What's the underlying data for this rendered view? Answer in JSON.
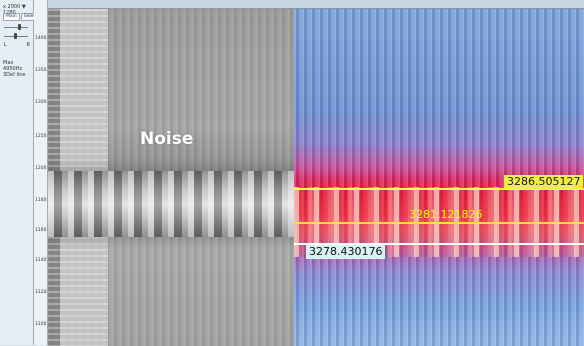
{
  "left_panel": {
    "freq_readout": "x 2000  ▼ 1280",
    "tabs": [
      "Main",
      "Select"
    ],
    "slider_labels": [
      "L",
      "R"
    ],
    "info_text": "Max 4950Hz 3Def line"
  },
  "freq_axis": {
    "ticks": [
      "1400",
      "1350",
      "1300",
      "1250",
      "1200",
      "1180",
      "1160",
      "1140",
      "1120",
      "1100",
      "1080"
    ]
  },
  "main_view": {
    "noise_label": "Noise",
    "markers": {
      "upper": {
        "value": "3286.505127",
        "line_color": "#ffff3a",
        "tag_bg": "#f0ef48",
        "tag_fg": "#1a1a1a"
      },
      "middle": {
        "value": "3281.121826",
        "line_color": "#f5e23a",
        "tag_bg": "transparent",
        "tag_fg": "#ffff00"
      },
      "lower": {
        "value": "3278.430176",
        "line_color": "#ffffff",
        "tag_bg": "#d9f2f4",
        "tag_fg": "#111111"
      }
    }
  }
}
